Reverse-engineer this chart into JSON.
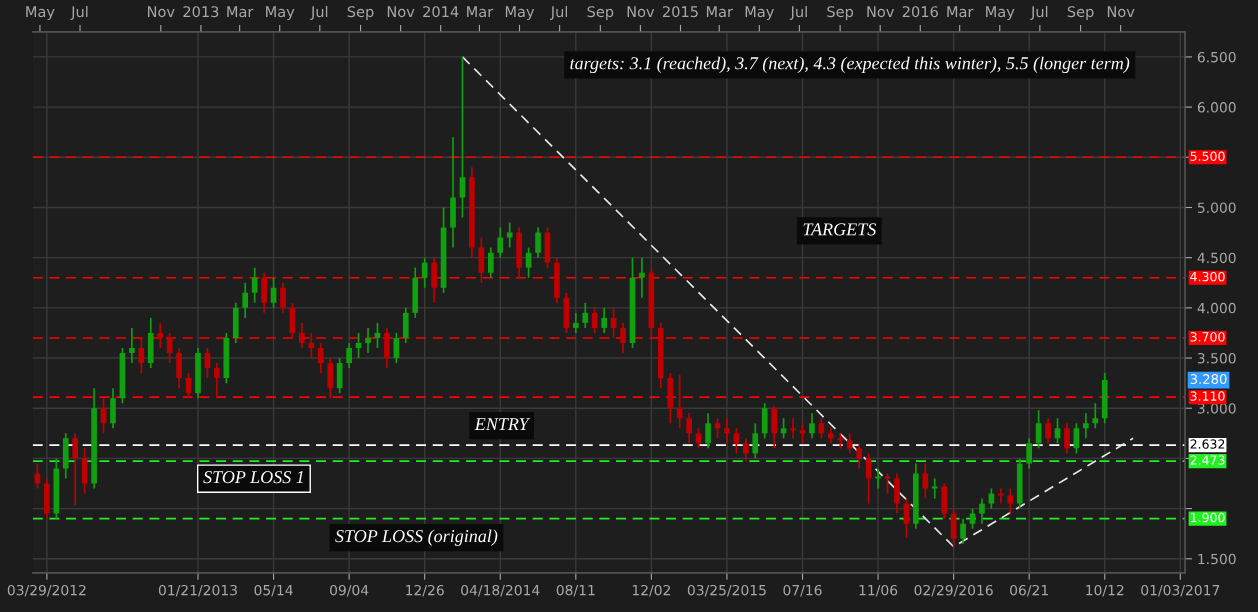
{
  "chart_data": {
    "type": "candlestick",
    "categories": [
      null,
      "03/29/2012",
      null,
      null,
      null,
      null,
      null,
      null,
      null,
      null,
      null,
      null,
      null,
      null,
      null,
      null,
      null,
      "01/21/2013",
      null,
      null,
      null,
      null,
      null,
      null,
      null,
      "05/14",
      null,
      null,
      null,
      null,
      null,
      null,
      null,
      "09/04",
      null,
      null,
      null,
      null,
      null,
      null,
      null,
      "12/26",
      null,
      null,
      null,
      null,
      null,
      null,
      null,
      "04/18/2014",
      null,
      null,
      null,
      null,
      null,
      null,
      null,
      "08/11",
      null,
      null,
      null,
      null,
      null,
      null,
      null,
      "12/02",
      null,
      null,
      null,
      null,
      null,
      null,
      null,
      "03/25/2015",
      null,
      null,
      null,
      null,
      null,
      null,
      null,
      "07/16",
      null,
      null,
      null,
      null,
      null,
      null,
      null,
      "11/06",
      null,
      null,
      null,
      null,
      null,
      null,
      null,
      "02/29/2016",
      null,
      null,
      null,
      null,
      null,
      null,
      null,
      "06/21",
      null,
      null,
      null,
      null,
      null,
      null,
      null,
      "10/12",
      null,
      null,
      null,
      null,
      null,
      null,
      null,
      "01/03/2017"
    ],
    "ohlc": [
      [
        2.35,
        2.45,
        2.2,
        2.25
      ],
      [
        2.25,
        2.3,
        1.9,
        1.95
      ],
      [
        1.95,
        2.5,
        1.9,
        2.4
      ],
      [
        2.4,
        2.75,
        2.3,
        2.7
      ],
      [
        2.7,
        2.75,
        2.03,
        2.5
      ],
      [
        2.5,
        2.6,
        2.15,
        2.25
      ],
      [
        2.25,
        3.2,
        2.2,
        3.0
      ],
      [
        3.0,
        3.1,
        2.75,
        2.85
      ],
      [
        2.85,
        3.2,
        2.8,
        3.1
      ],
      [
        3.1,
        3.6,
        3.05,
        3.55
      ],
      [
        3.55,
        3.8,
        3.45,
        3.6
      ],
      [
        3.6,
        3.7,
        3.35,
        3.45
      ],
      [
        3.45,
        3.9,
        3.4,
        3.75
      ],
      [
        3.75,
        3.85,
        3.6,
        3.7
      ],
      [
        3.7,
        3.75,
        3.45,
        3.55
      ],
      [
        3.55,
        3.6,
        3.2,
        3.3
      ],
      [
        3.3,
        3.35,
        3.1,
        3.15
      ],
      [
        3.15,
        3.6,
        3.1,
        3.55
      ],
      [
        3.55,
        3.6,
        3.3,
        3.4
      ],
      [
        3.4,
        3.45,
        3.1,
        3.3
      ],
      [
        3.3,
        3.75,
        3.25,
        3.7
      ],
      [
        3.7,
        4.05,
        3.65,
        4.0
      ],
      [
        4.0,
        4.25,
        3.9,
        4.15
      ],
      [
        4.15,
        4.4,
        4.05,
        4.3
      ],
      [
        4.3,
        4.35,
        3.95,
        4.05
      ],
      [
        4.05,
        4.3,
        4.0,
        4.2
      ],
      [
        4.2,
        4.25,
        3.95,
        4.0
      ],
      [
        4.0,
        4.05,
        3.7,
        3.75
      ],
      [
        3.75,
        3.85,
        3.6,
        3.65
      ],
      [
        3.65,
        3.75,
        3.5,
        3.6
      ],
      [
        3.6,
        3.65,
        3.35,
        3.45
      ],
      [
        3.45,
        3.5,
        3.1,
        3.2
      ],
      [
        3.2,
        3.5,
        3.15,
        3.45
      ],
      [
        3.45,
        3.65,
        3.4,
        3.6
      ],
      [
        3.6,
        3.75,
        3.5,
        3.65
      ],
      [
        3.65,
        3.8,
        3.55,
        3.7
      ],
      [
        3.7,
        3.85,
        3.6,
        3.75
      ],
      [
        3.75,
        3.8,
        3.4,
        3.5
      ],
      [
        3.5,
        3.75,
        3.45,
        3.7
      ],
      [
        3.7,
        4.0,
        3.65,
        3.95
      ],
      [
        3.95,
        4.4,
        3.9,
        4.3
      ],
      [
        4.3,
        4.5,
        4.2,
        4.45
      ],
      [
        4.45,
        4.5,
        4.05,
        4.2
      ],
      [
        4.2,
        5.0,
        4.15,
        4.8
      ],
      [
        4.8,
        5.7,
        4.6,
        5.1
      ],
      [
        5.1,
        6.5,
        4.9,
        5.3
      ],
      [
        5.3,
        5.4,
        4.5,
        4.6
      ],
      [
        4.6,
        4.7,
        4.25,
        4.35
      ],
      [
        4.35,
        4.6,
        4.3,
        4.55
      ],
      [
        4.55,
        4.8,
        4.5,
        4.7
      ],
      [
        4.7,
        4.85,
        4.6,
        4.75
      ],
      [
        4.75,
        4.8,
        4.3,
        4.4
      ],
      [
        4.4,
        4.6,
        4.3,
        4.55
      ],
      [
        4.55,
        4.8,
        4.5,
        4.75
      ],
      [
        4.75,
        4.8,
        4.4,
        4.45
      ],
      [
        4.45,
        4.5,
        4.05,
        4.1
      ],
      [
        4.1,
        4.15,
        3.75,
        3.8
      ],
      [
        3.8,
        3.95,
        3.75,
        3.85
      ],
      [
        3.85,
        4.05,
        3.8,
        3.95
      ],
      [
        3.95,
        4.0,
        3.75,
        3.8
      ],
      [
        3.8,
        4.0,
        3.75,
        3.9
      ],
      [
        3.9,
        4.0,
        3.7,
        3.8
      ],
      [
        3.8,
        3.85,
        3.55,
        3.65
      ],
      [
        3.65,
        4.5,
        3.6,
        4.3
      ],
      [
        4.3,
        4.5,
        4.1,
        4.35
      ],
      [
        4.35,
        4.4,
        3.7,
        3.8
      ],
      [
        3.8,
        3.85,
        3.2,
        3.3
      ],
      [
        3.3,
        3.35,
        2.85,
        3.0
      ],
      [
        3.0,
        3.33,
        2.8,
        2.9
      ],
      [
        2.9,
        2.95,
        2.65,
        2.75
      ],
      [
        2.75,
        2.8,
        2.6,
        2.65
      ],
      [
        2.65,
        2.95,
        2.6,
        2.85
      ],
      [
        2.85,
        2.9,
        2.7,
        2.8
      ],
      [
        2.8,
        2.9,
        2.65,
        2.75
      ],
      [
        2.75,
        2.8,
        2.55,
        2.65
      ],
      [
        2.65,
        2.7,
        2.47,
        2.55
      ],
      [
        2.55,
        2.85,
        2.5,
        2.75
      ],
      [
        2.75,
        3.05,
        2.7,
        3.0
      ],
      [
        3.0,
        3.02,
        2.6,
        2.75
      ],
      [
        2.75,
        2.9,
        2.7,
        2.8
      ],
      [
        2.8,
        2.9,
        2.7,
        2.78
      ],
      [
        2.78,
        2.85,
        2.65,
        2.75
      ],
      [
        2.75,
        2.95,
        2.7,
        2.85
      ],
      [
        2.85,
        2.9,
        2.7,
        2.75
      ],
      [
        2.75,
        2.8,
        2.65,
        2.7
      ],
      [
        2.7,
        2.75,
        2.6,
        2.68
      ],
      [
        2.68,
        2.75,
        2.55,
        2.6
      ],
      [
        2.6,
        2.65,
        2.4,
        2.5
      ],
      [
        2.5,
        2.55,
        2.05,
        2.3
      ],
      [
        2.3,
        2.4,
        2.2,
        2.32
      ],
      [
        2.32,
        2.35,
        2.15,
        2.3
      ],
      [
        2.3,
        2.35,
        1.95,
        2.05
      ],
      [
        2.05,
        2.1,
        1.71,
        1.85
      ],
      [
        1.85,
        2.45,
        1.8,
        2.35
      ],
      [
        2.35,
        2.45,
        2.1,
        2.2
      ],
      [
        2.2,
        2.3,
        2.1,
        2.22
      ],
      [
        2.22,
        2.25,
        1.9,
        1.95
      ],
      [
        1.95,
        2.0,
        1.62,
        1.7
      ],
      [
        1.7,
        1.9,
        1.65,
        1.85
      ],
      [
        1.85,
        2.0,
        1.8,
        1.95
      ],
      [
        1.95,
        2.1,
        1.85,
        2.05
      ],
      [
        2.05,
        2.2,
        2.0,
        2.15
      ],
      [
        2.15,
        2.2,
        2.05,
        2.13
      ],
      [
        2.13,
        2.2,
        1.95,
        2.05
      ],
      [
        2.05,
        2.5,
        2.0,
        2.45
      ],
      [
        2.45,
        2.7,
        2.4,
        2.65
      ],
      [
        2.65,
        2.98,
        2.6,
        2.85
      ],
      [
        2.85,
        2.9,
        2.65,
        2.7
      ],
      [
        2.7,
        2.9,
        2.65,
        2.8
      ],
      [
        2.8,
        2.85,
        2.55,
        2.6
      ],
      [
        2.6,
        2.85,
        2.55,
        2.8
      ],
      [
        2.8,
        2.95,
        2.7,
        2.85
      ],
      [
        2.85,
        3.05,
        2.8,
        2.9
      ],
      [
        2.9,
        3.35,
        2.85,
        3.28
      ],
      null,
      null,
      null,
      null,
      null,
      null,
      null,
      null
    ],
    "colors": [
      "#c00000",
      "#c00000",
      "#10a010",
      "#10a010",
      "#c00000",
      "#c00000",
      "#10a010",
      "#c00000",
      "#10a010",
      "#10a010",
      "#10a010",
      "#c00000",
      "#10a010",
      "#c00000",
      "#c00000",
      "#c00000",
      "#c00000",
      "#10a010",
      "#c00000",
      "#c00000",
      "#10a010",
      "#10a010",
      "#10a010",
      "#10a010",
      "#c00000",
      "#10a010",
      "#c00000",
      "#c00000",
      "#c00000",
      "#c00000",
      "#c00000",
      "#c00000",
      "#10a010",
      "#10a010",
      "#10a010",
      "#10a010",
      "#10a010",
      "#c00000",
      "#10a010",
      "#10a010",
      "#10a010",
      "#10a010",
      "#c00000",
      "#10a010",
      "#10a010",
      "#10a010",
      "#c00000",
      "#c00000",
      "#10a010",
      "#10a010",
      "#10a010",
      "#c00000",
      "#10a010",
      "#10a010",
      "#c00000",
      "#c00000",
      "#c00000",
      "#10a010",
      "#10a010",
      "#c00000",
      "#10a010",
      "#c00000",
      "#c00000",
      "#10a010",
      "#10a010",
      "#c00000",
      "#c00000",
      "#c00000",
      "#c00000",
      "#c00000",
      "#c00000",
      "#10a010",
      "#c00000",
      "#c00000",
      "#c00000",
      "#c00000",
      "#10a010",
      "#10a010",
      "#c00000",
      "#10a010",
      "#c00000",
      "#c00000",
      "#10a010",
      "#c00000",
      "#c00000",
      "#c00000",
      "#c00000",
      "#c00000",
      "#c00000",
      "#10a010",
      "#c00000",
      "#c00000",
      "#c00000",
      "#10a010",
      "#c00000",
      "#10a010",
      "#c00000",
      "#c00000",
      "#10a010",
      "#10a010",
      "#10a010",
      "#10a010",
      "#c00000",
      "#c00000",
      "#10a010",
      "#10a010",
      "#10a010",
      "#c00000",
      "#10a010",
      "#c00000",
      "#10a010",
      "#10a010",
      "#10a010",
      "#10a010",
      null,
      null,
      null,
      null,
      null,
      null,
      null,
      null
    ],
    "series": [
      {
        "type": "line",
        "color": "#e8e8e8",
        "line_style": "dashed",
        "values": [
          null,
          null,
          null,
          null,
          null,
          null,
          null,
          null,
          null,
          null,
          null,
          null,
          null,
          null,
          null,
          null,
          null,
          null,
          null,
          null,
          null,
          null,
          null,
          null,
          null,
          null,
          null,
          null,
          null,
          null,
          null,
          null,
          null,
          null,
          null,
          null,
          null,
          null,
          null,
          null,
          null,
          null,
          null,
          null,
          null,
          6.5,
          null,
          null,
          null,
          null,
          null,
          null,
          null,
          null,
          null,
          null,
          null,
          null,
          null,
          null,
          null,
          null,
          null,
          null,
          null,
          null,
          null,
          null,
          null,
          null,
          null,
          null,
          null,
          null,
          null,
          null,
          null,
          null,
          null,
          null,
          null,
          null,
          null,
          null,
          null,
          null,
          null,
          null,
          null,
          null,
          null,
          null,
          null,
          null,
          null,
          null,
          null,
          1.62,
          null,
          null,
          null,
          null,
          null,
          null,
          null,
          null,
          null,
          null,
          null,
          null,
          null,
          null,
          null,
          null,
          null,
          null,
          2.7,
          null,
          null,
          null,
          null,
          null
        ]
      }
    ],
    "ylim": [
      1.36,
      6.75
    ],
    "yticks": [
      {
        "value": 1.5,
        "label": "1.500"
      },
      {
        "value": 2.0,
        "label": null
      },
      {
        "value": 2.5,
        "label": null
      },
      {
        "value": 3.0,
        "label": "3.000"
      },
      {
        "value": 3.5,
        "label": "3.500"
      },
      {
        "value": 4.0,
        "label": "4.000"
      },
      {
        "value": 4.5,
        "label": "4.500"
      },
      {
        "value": 5.0,
        "label": "5.000"
      },
      {
        "value": 5.5,
        "label": null
      },
      {
        "value": 6.0,
        "label": "6.000"
      },
      {
        "value": 6.5,
        "label": "6.500"
      }
    ],
    "x2lim": [
      "2012-04-20",
      "2017-02-07"
    ],
    "x2ticks": [
      {
        "value": "2012-05",
        "label": "May"
      },
      {
        "value": "2012-07",
        "label": "Jul"
      },
      {
        "value": "2012-11",
        "label": "Nov"
      },
      {
        "value": "2013-01",
        "label": "2013"
      },
      {
        "value": "2013-03",
        "label": "Mar"
      },
      {
        "value": "2013-05",
        "label": "May"
      },
      {
        "value": "2013-07",
        "label": "Jul"
      },
      {
        "value": "2013-09",
        "label": "Sep"
      },
      {
        "value": "2013-11",
        "label": "Nov"
      },
      {
        "value": "2014-01",
        "label": "2014"
      },
      {
        "value": "2014-03",
        "label": "Mar"
      },
      {
        "value": "2014-05",
        "label": "May"
      },
      {
        "value": "2014-07",
        "label": "Jul"
      },
      {
        "value": "2014-09",
        "label": "Sep"
      },
      {
        "value": "2014-11",
        "label": "Nov"
      },
      {
        "value": "2015-01",
        "label": "2015"
      },
      {
        "value": "2015-03",
        "label": "Mar"
      },
      {
        "value": "2015-05",
        "label": "May"
      },
      {
        "value": "2015-07",
        "label": "Jul"
      },
      {
        "value": "2015-09",
        "label": "Sep"
      },
      {
        "value": "2015-11",
        "label": "Nov"
      },
      {
        "value": "2016-01",
        "label": "2016"
      },
      {
        "value": "2016-03",
        "label": "Mar"
      },
      {
        "value": "2016-05",
        "label": "May"
      },
      {
        "value": "2016-07",
        "label": "Jul"
      },
      {
        "value": "2016-09",
        "label": "Sep"
      },
      {
        "value": "2016-11",
        "label": "Nov"
      }
    ],
    "ref_lines": [
      {
        "axis": "y",
        "value": 5.5,
        "label": "5.500",
        "color": "#ff0000",
        "line_style": "dashed"
      },
      {
        "axis": "y",
        "value": 4.3,
        "label": "4.300",
        "color": "#ff0000",
        "line_style": "dashed"
      },
      {
        "axis": "y",
        "value": 3.7,
        "label": "3.700",
        "color": "#ff0000",
        "line_style": "dashed"
      },
      {
        "axis": "y",
        "value": 3.11,
        "label": "3.110",
        "color": "#ff0000",
        "line_style": "dashed"
      },
      {
        "axis": "y",
        "value": 2.632,
        "label": "2.632",
        "color": "#ffffff",
        "line_style": "dashed"
      },
      {
        "axis": "y",
        "value": 2.473,
        "label": "2.473",
        "color": "#22ee22",
        "line_style": "dashed"
      },
      {
        "axis": "y",
        "value": 1.9,
        "label": "1.900",
        "color": "#22ee22",
        "line_style": "dashed"
      }
    ],
    "annotations": [
      "targets: 3.1 (reached), 3.7 (next), 4.3 (expected this winter), 5.5 (longer term)",
      "TARGETS",
      "ENTRY",
      "STOP LOSS 1",
      "STOP LOSS (original)",
      "3.280"
    ],
    "grid": true,
    "legend": false
  }
}
